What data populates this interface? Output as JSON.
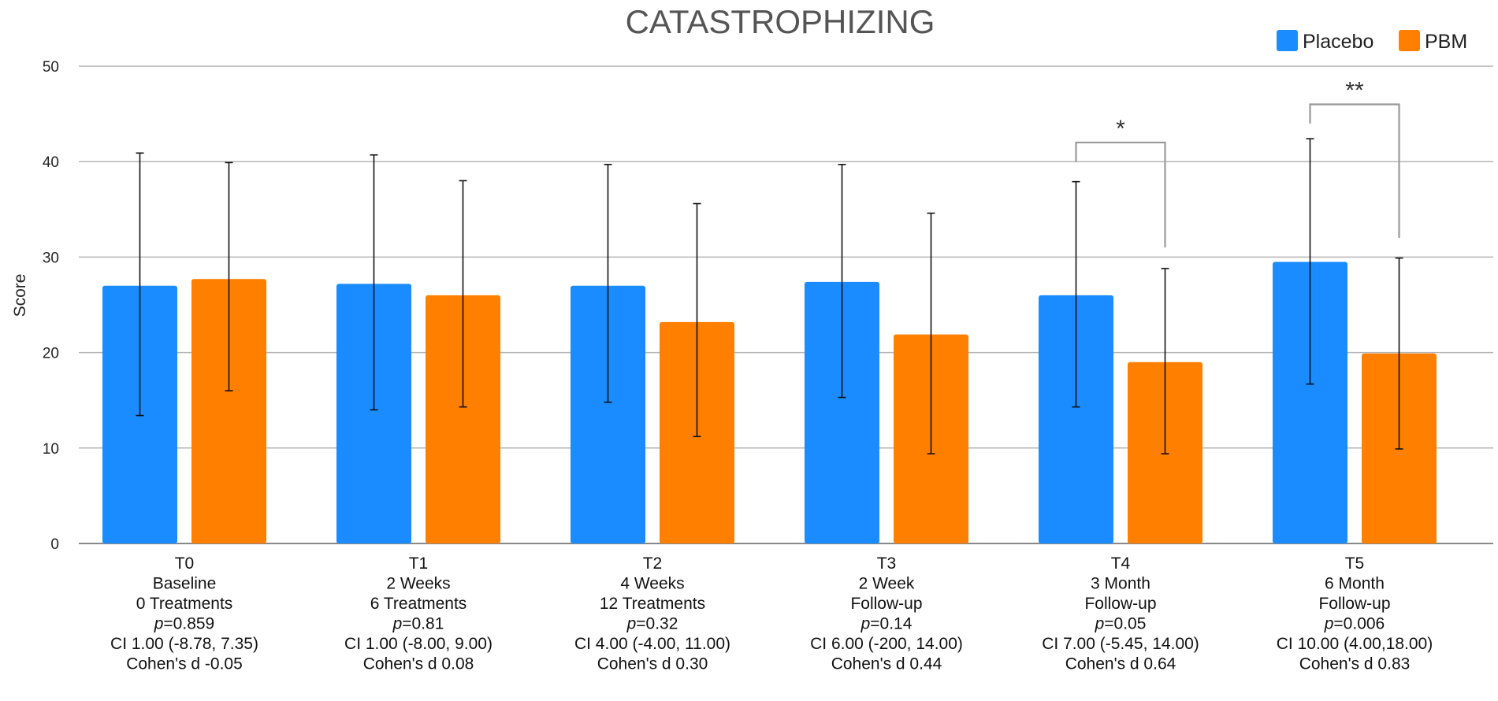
{
  "chart_data": {
    "type": "bar",
    "title": "CATASTROPHIZING",
    "ylabel": "Score",
    "xlabel": "",
    "ylim": [
      0,
      50
    ],
    "yticks": [
      0,
      10,
      20,
      30,
      40,
      50
    ],
    "grid": true,
    "legend_position": "top-right",
    "categories": [
      {
        "label": "T0",
        "lines": [
          "Baseline",
          "0 Treatments"
        ],
        "p_prefix": "p",
        "p_value": "=0.859",
        "ci": "CI 1.00 (-8.78, 7.35)",
        "cohen": "Cohen's d -0.05"
      },
      {
        "label": "T1",
        "lines": [
          "2 Weeks",
          "6 Treatments"
        ],
        "p_prefix": "p",
        "p_value": "=0.81",
        "ci": "CI 1.00 (-8.00, 9.00)",
        "cohen": "Cohen's d 0.08"
      },
      {
        "label": "T2",
        "lines": [
          "4 Weeks",
          "12 Treatments"
        ],
        "p_prefix": "p",
        "p_value": "=0.32",
        "ci": "CI 4.00 (-4.00, 11.00)",
        "cohen": "Cohen's d 0.30"
      },
      {
        "label": "T3",
        "lines": [
          "2 Week",
          "Follow-up"
        ],
        "p_prefix": "p",
        "p_value": "=0.14",
        "ci": "CI 6.00 (-200, 14.00)",
        "cohen": "Cohen's d 0.44"
      },
      {
        "label": "T4",
        "lines": [
          "3 Month",
          "Follow-up"
        ],
        "p_prefix": "p",
        "p_value": "=0.05",
        "ci": "CI 7.00 (-5.45, 14.00)",
        "cohen": "Cohen's d 0.64"
      },
      {
        "label": "T5",
        "lines": [
          "6 Month",
          "Follow-up"
        ],
        "p_prefix": "p",
        "p_value": "=0.006",
        "ci": "CI 10.00 (4.00,18.00)",
        "cohen": "Cohen's d 0.83"
      }
    ],
    "series": [
      {
        "name": "Placebo",
        "color": "#1a8cff",
        "values": [
          27.0,
          27.2,
          27.0,
          27.4,
          26.0,
          29.5
        ],
        "err_low": [
          13.4,
          14.0,
          14.8,
          15.3,
          14.3,
          16.7
        ],
        "err_high": [
          40.9,
          40.7,
          39.7,
          39.7,
          37.9,
          42.4
        ]
      },
      {
        "name": "PBM",
        "color": "#ff7f00",
        "values": [
          27.7,
          26.0,
          23.2,
          21.9,
          19.0,
          19.9
        ],
        "err_low": [
          16.0,
          14.3,
          11.2,
          9.4,
          9.4,
          9.9
        ],
        "err_high": [
          39.9,
          38.0,
          35.6,
          34.6,
          28.8,
          29.9
        ]
      }
    ],
    "significance": [
      {
        "category_index": 4,
        "label": "*",
        "bracket_y": 42.0,
        "left_end": 40.0,
        "right_end": 31.0
      },
      {
        "category_index": 5,
        "label": "**",
        "bracket_y": 46.0,
        "left_end": 44.0,
        "right_end": 32.0
      }
    ]
  }
}
